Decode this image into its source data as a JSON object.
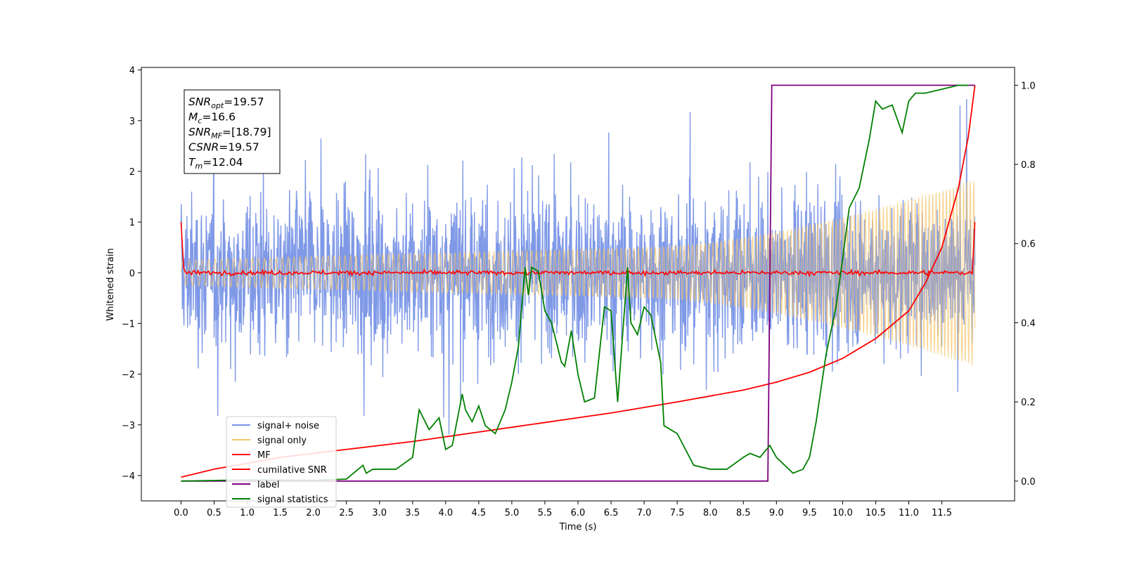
{
  "chart_data": {
    "type": "line",
    "xlabel": "Time (s)",
    "ylabel": "Whitened strain",
    "xlim": [
      -0.6,
      12.6
    ],
    "ylim": [
      -4.5,
      4.05
    ],
    "y2lim": [
      -0.05,
      1.045
    ],
    "x_ticks": [
      "0.0",
      "0.5",
      "1.0",
      "1.5",
      "2.0",
      "2.5",
      "3.0",
      "3.5",
      "4.0",
      "4.5",
      "5.0",
      "5.5",
      "6.0",
      "6.5",
      "7.0",
      "7.5",
      "8.0",
      "8.5",
      "9.0",
      "9.5",
      "10.0",
      "10.5",
      "11.0",
      "11.5"
    ],
    "y_ticks": [
      "4",
      "3",
      "2",
      "1",
      "0",
      "−1",
      "−2",
      "−3",
      "−4"
    ],
    "y2_ticks": [
      "1.0",
      "0.8",
      "0.6",
      "0.4",
      "0.2",
      "0.0"
    ],
    "legend_position": "lower-left",
    "info_box": [
      {
        "base": "SNR",
        "sub": "opt",
        "rest": "=19.57"
      },
      {
        "base": "M",
        "sub": "c",
        "rest": "=16.6"
      },
      {
        "base": "SNR",
        "sub": "MF",
        "rest": "=[18.79]"
      },
      {
        "base": "CSNR",
        "sub": "",
        "rest": "=19.57"
      },
      {
        "base": "T",
        "sub": "m",
        "rest": "=12.04"
      }
    ],
    "series": [
      {
        "name": "signal+ noise",
        "color": "#7894e6",
        "axis": "left",
        "description_range": [
          -3.6,
          3.6
        ]
      },
      {
        "name": "signal only",
        "color": "#f5c56a",
        "axis": "left",
        "envelope": {
          "start": 0.5,
          "end": 1.85,
          "t_start": 7.0,
          "t_end": 12.0
        }
      },
      {
        "name": "MF",
        "color": "#ff0000",
        "axis": "left",
        "baseline": 0,
        "edge_value": 1.0
      },
      {
        "name": "cumilative SNR",
        "color": "#ff0000",
        "axis": "right",
        "x": [
          0.0,
          0.5,
          1.0,
          1.5,
          2.0,
          2.5,
          3.0,
          3.5,
          4.0,
          4.5,
          5.0,
          5.5,
          6.0,
          6.5,
          7.0,
          7.5,
          8.0,
          8.5,
          9.0,
          9.5,
          10.0,
          10.5,
          11.0,
          11.25,
          11.5,
          11.75,
          11.9,
          12.0
        ],
        "y": [
          0.01,
          0.03,
          0.045,
          0.06,
          0.07,
          0.08,
          0.09,
          0.1,
          0.112,
          0.124,
          0.136,
          0.148,
          0.16,
          0.172,
          0.186,
          0.2,
          0.215,
          0.23,
          0.25,
          0.275,
          0.31,
          0.36,
          0.43,
          0.5,
          0.59,
          0.74,
          0.87,
          1.0
        ]
      },
      {
        "name": "label",
        "color": "#800080",
        "axis": "right",
        "x": [
          0.0,
          8.87,
          8.93,
          12.0
        ],
        "y": [
          0.0,
          0.0,
          1.0,
          1.0
        ]
      },
      {
        "name": "signal statistics",
        "color": "#008000",
        "axis": "right",
        "x": [
          0.0,
          1.0,
          2.0,
          2.5,
          2.75,
          2.8,
          2.9,
          3.0,
          3.25,
          3.5,
          3.6,
          3.75,
          3.9,
          4.0,
          4.1,
          4.25,
          4.3,
          4.4,
          4.5,
          4.6,
          4.75,
          4.9,
          5.0,
          5.1,
          5.2,
          5.25,
          5.3,
          5.4,
          5.5,
          5.6,
          5.75,
          5.8,
          5.9,
          6.0,
          6.1,
          6.25,
          6.4,
          6.5,
          6.6,
          6.75,
          6.8,
          6.9,
          7.0,
          7.1,
          7.25,
          7.3,
          7.4,
          7.5,
          7.75,
          8.0,
          8.25,
          8.5,
          8.6,
          8.75,
          8.9,
          9.0,
          9.25,
          9.4,
          9.5,
          9.6,
          9.75,
          9.9,
          10.0,
          10.1,
          10.25,
          10.4,
          10.5,
          10.6,
          10.75,
          10.9,
          11.0,
          11.1,
          11.25,
          11.5,
          11.75,
          11.9
        ],
        "y": [
          0.0,
          0.003,
          0.002,
          0.005,
          0.04,
          0.02,
          0.03,
          0.03,
          0.03,
          0.06,
          0.18,
          0.13,
          0.16,
          0.08,
          0.09,
          0.22,
          0.18,
          0.15,
          0.19,
          0.14,
          0.12,
          0.18,
          0.25,
          0.34,
          0.54,
          0.47,
          0.54,
          0.53,
          0.43,
          0.4,
          0.3,
          0.29,
          0.38,
          0.27,
          0.2,
          0.21,
          0.44,
          0.43,
          0.2,
          0.54,
          0.4,
          0.37,
          0.44,
          0.42,
          0.3,
          0.14,
          0.13,
          0.12,
          0.04,
          0.03,
          0.03,
          0.06,
          0.07,
          0.06,
          0.09,
          0.06,
          0.02,
          0.03,
          0.06,
          0.15,
          0.32,
          0.44,
          0.56,
          0.69,
          0.74,
          0.86,
          0.96,
          0.94,
          0.95,
          0.88,
          0.96,
          0.98,
          0.98,
          0.99,
          1.0,
          1.0
        ]
      }
    ]
  }
}
